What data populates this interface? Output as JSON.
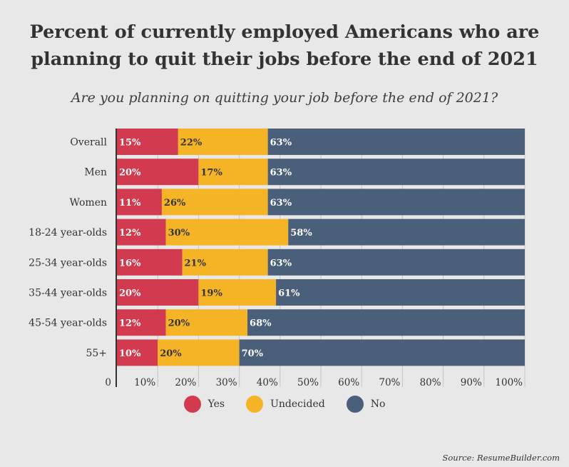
{
  "chart_data": {
    "type": "bar",
    "orientation": "horizontal",
    "stacked": true,
    "title": "Percent of currently employed Americans who are planning to quit their jobs before the end of 2021",
    "subtitle": "Are you planning on quitting your job before the end of 2021?",
    "categories": [
      "Overall",
      "Men",
      "Women",
      "18-24 year-olds",
      "25-34 year-olds",
      "35-44 year-olds",
      "45-54 year-olds",
      "55+"
    ],
    "series": [
      {
        "name": "Yes",
        "color": "#d23b4f",
        "values": [
          15,
          20,
          11,
          12,
          16,
          20,
          12,
          10
        ]
      },
      {
        "name": "Undecided",
        "color": "#f5b326",
        "values": [
          22,
          17,
          26,
          30,
          21,
          19,
          20,
          20
        ]
      },
      {
        "name": "No",
        "color": "#4a5f7a",
        "values": [
          63,
          63,
          63,
          58,
          63,
          61,
          68,
          70
        ]
      }
    ],
    "x_ticks": [
      "0",
      "10%",
      "20%",
      "30%",
      "40%",
      "50%",
      "60%",
      "70%",
      "80%",
      "90%",
      "100%"
    ],
    "xlim": [
      0,
      100
    ],
    "grid": true,
    "legend_position": "bottom-center",
    "source": "Source: ResumeBuilder.com"
  }
}
